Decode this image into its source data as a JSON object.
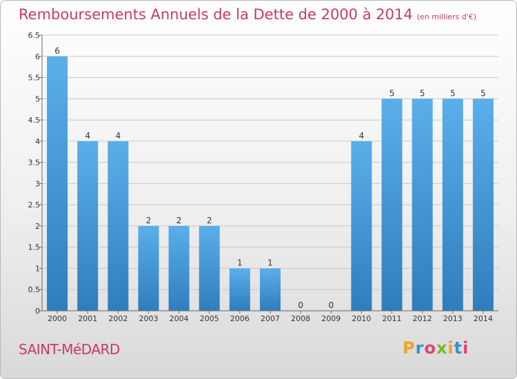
{
  "header": {
    "title": "Remboursements Annuels de la Dette de 2000 à 2014",
    "unit": "(en milliers d'€)"
  },
  "footer": {
    "commune": "SAINT-MéDARD",
    "brand": "Proxiti"
  },
  "colors": {
    "accent": "#c8386c",
    "bar_top": "#5aafea",
    "bar_bottom": "#2f7dbd",
    "grid": "#c8c8c8"
  },
  "chart_data": {
    "type": "bar",
    "title": "Remboursements Annuels de la Dette de 2000 à 2014",
    "subtitle": "(en milliers d'€)",
    "xlabel": "",
    "ylabel": "",
    "categories": [
      "2000",
      "2001",
      "2002",
      "2003",
      "2004",
      "2005",
      "2006",
      "2007",
      "2008",
      "2009",
      "2010",
      "2011",
      "2012",
      "2013",
      "2014"
    ],
    "values": [
      6,
      4,
      4,
      2,
      2,
      2,
      1,
      1,
      0,
      0,
      4,
      5,
      5,
      5,
      5
    ],
    "value_labels": [
      "6",
      "4",
      "4",
      "2",
      "2",
      "2",
      "1",
      "1",
      "0",
      "0",
      "4",
      "5",
      "5",
      "5",
      "5"
    ],
    "ylim": [
      0,
      6.5
    ],
    "yticks": [
      0,
      0.5,
      1,
      1.5,
      2,
      2.5,
      3,
      3.5,
      4,
      4.5,
      5,
      5.5,
      6,
      6.5
    ],
    "ytick_labels": [
      "0",
      "0.5",
      "1",
      "1.5",
      "2",
      "2.5",
      "3",
      "3.5",
      "4",
      "4.5",
      "5",
      "5.5",
      "6",
      "6.5"
    ],
    "grid": true,
    "legend": "none"
  }
}
